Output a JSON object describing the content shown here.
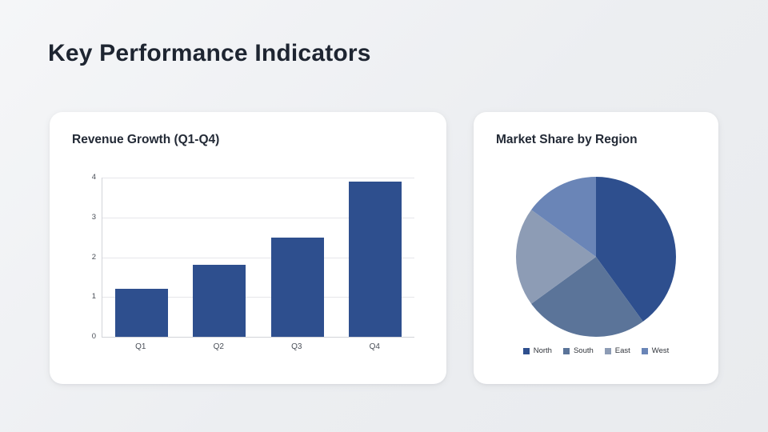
{
  "page": {
    "title": "Key Performance Indicators"
  },
  "colors": {
    "accent_dark_blue": "#2e4f8e",
    "slate_blue": "#5b7499",
    "light_gray_blue": "#8d9cb5",
    "medium_blue": "#6a85b7",
    "card_background": "#ffffff",
    "title_text": "#1e2531"
  },
  "chart_data": [
    {
      "type": "bar",
      "title": "Revenue Growth (Q1-Q4)",
      "categories": [
        "Q1",
        "Q2",
        "Q3",
        "Q4"
      ],
      "values": [
        1.2,
        1.8,
        2.5,
        3.9
      ],
      "xlabel": "",
      "ylabel": "",
      "ylim": [
        0,
        4
      ],
      "yticks": [
        0,
        1,
        2,
        3,
        4
      ],
      "grid": true,
      "bar_color": "#2e4f8e",
      "legend_position": "none"
    },
    {
      "type": "pie",
      "title": "Market Share by Region",
      "labels": [
        "North",
        "South",
        "East",
        "West"
      ],
      "values": [
        40,
        25,
        20,
        15
      ],
      "colors": [
        "#2e4f8e",
        "#5b7499",
        "#8d9cb5",
        "#6a85b7"
      ],
      "start_angle_deg": 0,
      "direction": "clockwise",
      "legend_position": "bottom"
    }
  ]
}
